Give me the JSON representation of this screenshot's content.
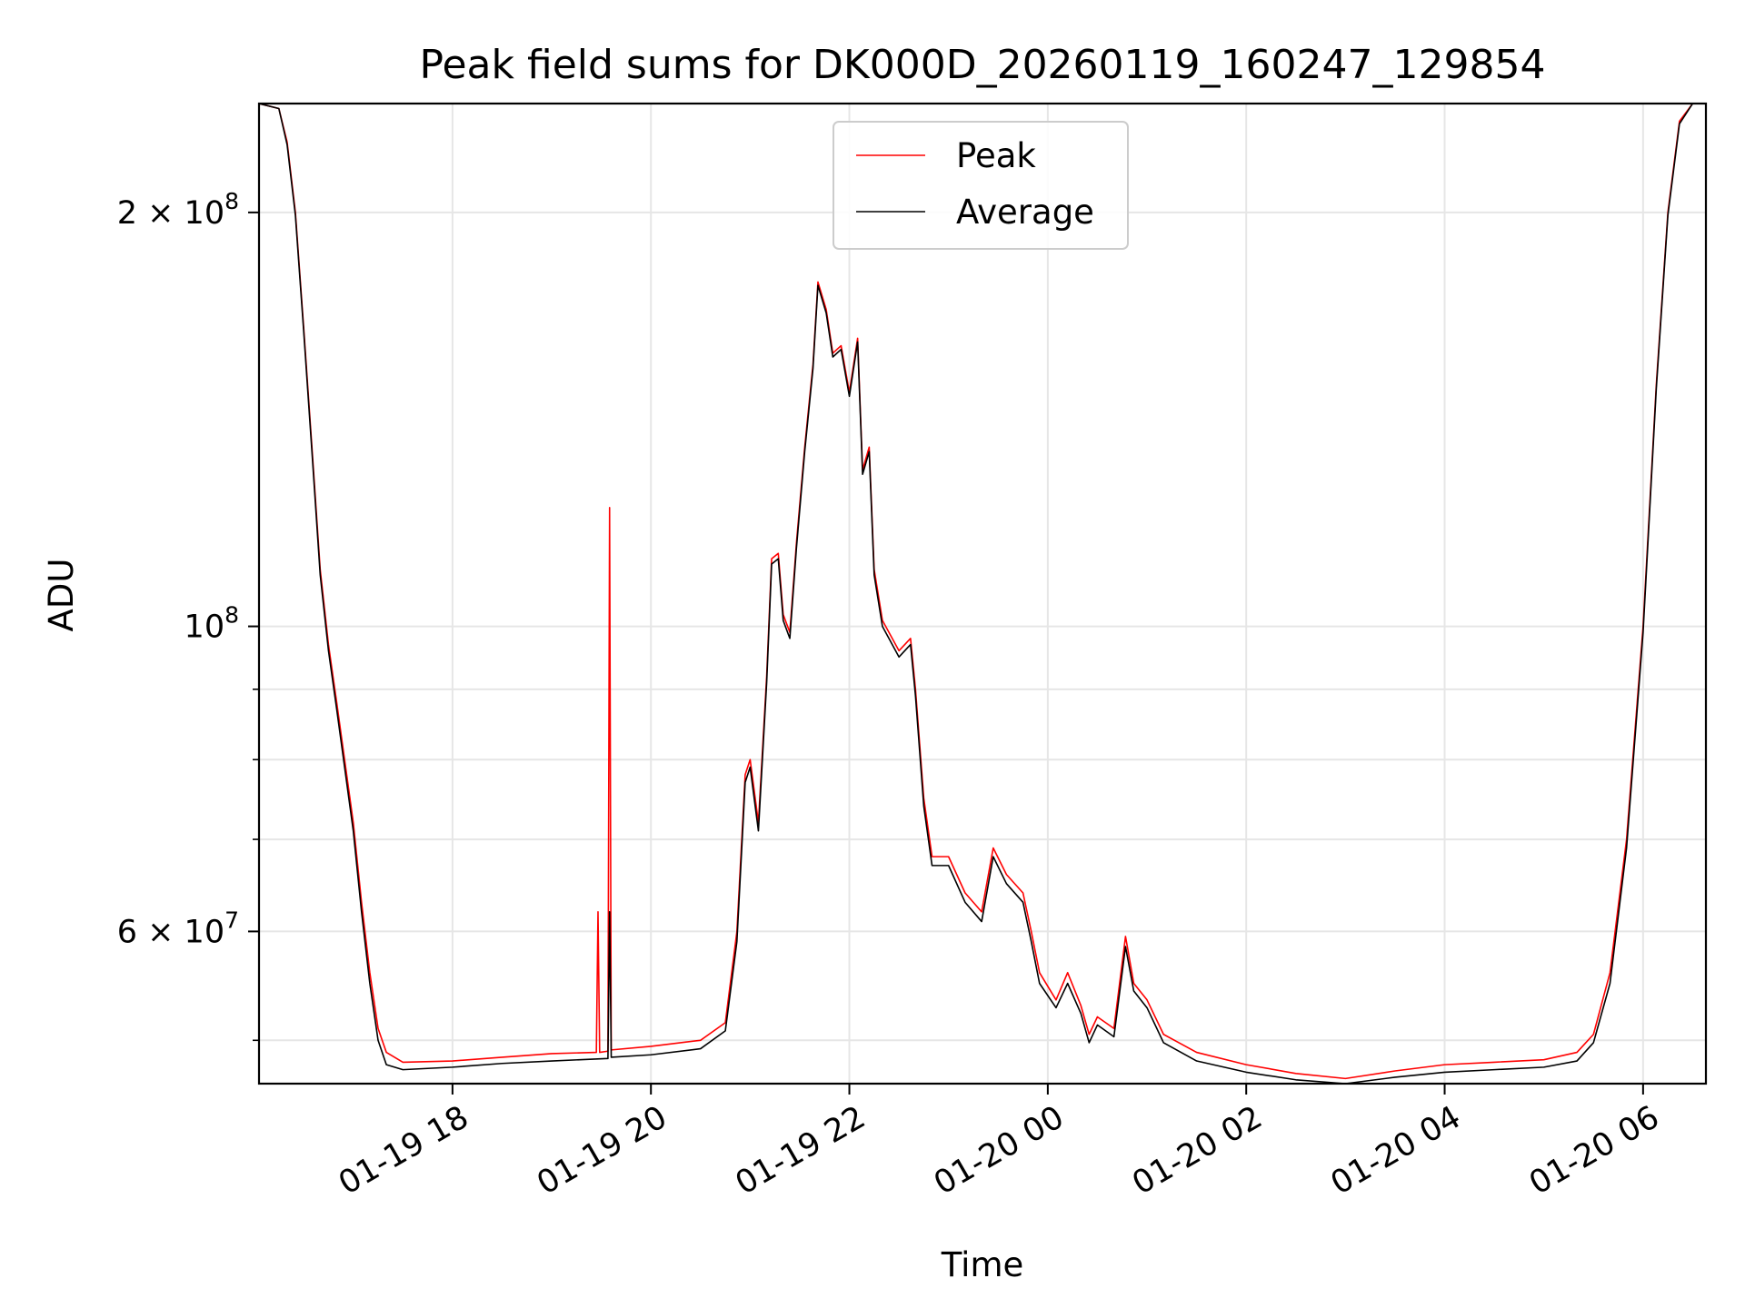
{
  "chart_data": {
    "type": "line",
    "title": "Peak field sums for DK000D_20260119_160247_129854",
    "xlabel": "Time",
    "ylabel": "ADU",
    "yscale": "log",
    "xlim": [
      "2026-01-19 16:03",
      "2026-01-20 06:38"
    ],
    "ylim": [
      46500000,
      240000000
    ],
    "grid": true,
    "legend_position": "top-center",
    "x_ticks": [
      {
        "value": "2026-01-19 18:00",
        "label": "01-19 18"
      },
      {
        "value": "2026-01-19 20:00",
        "label": "01-19 20"
      },
      {
        "value": "2026-01-19 22:00",
        "label": "01-19 22"
      },
      {
        "value": "2026-01-20 00:00",
        "label": "01-20 00"
      },
      {
        "value": "2026-01-20 02:00",
        "label": "01-20 02"
      },
      {
        "value": "2026-01-20 04:00",
        "label": "01-20 04"
      },
      {
        "value": "2026-01-20 06:00",
        "label": "01-20 06"
      }
    ],
    "y_ticks_major": [
      {
        "value": 200000000,
        "base": "2",
        "times": "×",
        "tenpow": "10",
        "exp": "8"
      },
      {
        "value": 100000000,
        "base": "",
        "times": "",
        "tenpow": "10",
        "exp": "8"
      },
      {
        "value": 60000000,
        "base": "6",
        "times": "×",
        "tenpow": "10",
        "exp": "7"
      }
    ],
    "y_gridlines_minor": [
      50000000,
      70000000,
      80000000,
      90000000
    ],
    "series": [
      {
        "name": "Peak",
        "color": "#ff0000",
        "points": [
          [
            "2026-01-19 16:03",
            240000000
          ],
          [
            "2026-01-19 16:15",
            238000000
          ],
          [
            "2026-01-19 16:20",
            225000000
          ],
          [
            "2026-01-19 16:25",
            200000000
          ],
          [
            "2026-01-19 16:30",
            165000000
          ],
          [
            "2026-01-19 16:35",
            135000000
          ],
          [
            "2026-01-19 16:40",
            110000000
          ],
          [
            "2026-01-19 16:45",
            97000000
          ],
          [
            "2026-01-19 16:50",
            88000000
          ],
          [
            "2026-01-19 17:00",
            72000000
          ],
          [
            "2026-01-19 17:05",
            63000000
          ],
          [
            "2026-01-19 17:10",
            56000000
          ],
          [
            "2026-01-19 17:15",
            51000000
          ],
          [
            "2026-01-19 17:20",
            49000000
          ],
          [
            "2026-01-19 17:30",
            48200000
          ],
          [
            "2026-01-19 18:00",
            48300000
          ],
          [
            "2026-01-19 18:30",
            48600000
          ],
          [
            "2026-01-19 19:00",
            48900000
          ],
          [
            "2026-01-19 19:27",
            49000000
          ],
          [
            "2026-01-19 19:28",
            62000000
          ],
          [
            "2026-01-19 19:29",
            49000000
          ],
          [
            "2026-01-19 19:34",
            49100000
          ],
          [
            "2026-01-19 19:35",
            122000000
          ],
          [
            "2026-01-19 19:36",
            49200000
          ],
          [
            "2026-01-19 20:00",
            49500000
          ],
          [
            "2026-01-19 20:30",
            50000000
          ],
          [
            "2026-01-19 20:45",
            51500000
          ],
          [
            "2026-01-19 20:52",
            60000000
          ],
          [
            "2026-01-19 20:57",
            78000000
          ],
          [
            "2026-01-19 21:00",
            80000000
          ],
          [
            "2026-01-19 21:05",
            72000000
          ],
          [
            "2026-01-19 21:10",
            92000000
          ],
          [
            "2026-01-19 21:13",
            112000000
          ],
          [
            "2026-01-19 21:17",
            113000000
          ],
          [
            "2026-01-19 21:20",
            102000000
          ],
          [
            "2026-01-19 21:24",
            99000000
          ],
          [
            "2026-01-19 21:28",
            115000000
          ],
          [
            "2026-01-19 21:33",
            135000000
          ],
          [
            "2026-01-19 21:38",
            155000000
          ],
          [
            "2026-01-19 21:41",
            178000000
          ],
          [
            "2026-01-19 21:46",
            170000000
          ],
          [
            "2026-01-19 21:50",
            158000000
          ],
          [
            "2026-01-19 21:55",
            160000000
          ],
          [
            "2026-01-19 22:00",
            148000000
          ],
          [
            "2026-01-19 22:05",
            162000000
          ],
          [
            "2026-01-19 22:08",
            130000000
          ],
          [
            "2026-01-19 22:12",
            135000000
          ],
          [
            "2026-01-19 22:15",
            110000000
          ],
          [
            "2026-01-19 22:20",
            101000000
          ],
          [
            "2026-01-19 22:30",
            96000000
          ],
          [
            "2026-01-19 22:37",
            98000000
          ],
          [
            "2026-01-19 22:40",
            90000000
          ],
          [
            "2026-01-19 22:45",
            75000000
          ],
          [
            "2026-01-19 22:50",
            68000000
          ],
          [
            "2026-01-19 23:00",
            68000000
          ],
          [
            "2026-01-19 23:10",
            64000000
          ],
          [
            "2026-01-19 23:20",
            62000000
          ],
          [
            "2026-01-19 23:27",
            69000000
          ],
          [
            "2026-01-19 23:35",
            66000000
          ],
          [
            "2026-01-19 23:45",
            64000000
          ],
          [
            "2026-01-19 23:50",
            60000000
          ],
          [
            "2026-01-19 23:55",
            56000000
          ],
          [
            "2026-01-20 00:05",
            53500000
          ],
          [
            "2026-01-20 00:12",
            56000000
          ],
          [
            "2026-01-20 00:20",
            53000000
          ],
          [
            "2026-01-20 00:25",
            50500000
          ],
          [
            "2026-01-20 00:30",
            52000000
          ],
          [
            "2026-01-20 00:40",
            51000000
          ],
          [
            "2026-01-20 00:47",
            59500000
          ],
          [
            "2026-01-20 00:52",
            55000000
          ],
          [
            "2026-01-20 01:00",
            53500000
          ],
          [
            "2026-01-20 01:10",
            50500000
          ],
          [
            "2026-01-20 01:30",
            49000000
          ],
          [
            "2026-01-20 02:00",
            48000000
          ],
          [
            "2026-01-20 02:30",
            47300000
          ],
          [
            "2026-01-20 03:00",
            46900000
          ],
          [
            "2026-01-20 03:30",
            47500000
          ],
          [
            "2026-01-20 04:00",
            48000000
          ],
          [
            "2026-01-20 04:30",
            48200000
          ],
          [
            "2026-01-20 05:00",
            48400000
          ],
          [
            "2026-01-20 05:20",
            49000000
          ],
          [
            "2026-01-20 05:30",
            50500000
          ],
          [
            "2026-01-20 05:40",
            56000000
          ],
          [
            "2026-01-20 05:50",
            70000000
          ],
          [
            "2026-01-20 06:00",
            100000000
          ],
          [
            "2026-01-20 06:08",
            150000000
          ],
          [
            "2026-01-20 06:15",
            200000000
          ],
          [
            "2026-01-20 06:22",
            233000000
          ],
          [
            "2026-01-20 06:30",
            240000000
          ],
          [
            "2026-01-20 06:38",
            240000000
          ]
        ]
      },
      {
        "name": "Average",
        "color": "#000000",
        "points": [
          [
            "2026-01-19 16:03",
            240000000
          ],
          [
            "2026-01-19 16:15",
            238000000
          ],
          [
            "2026-01-19 16:20",
            224000000
          ],
          [
            "2026-01-19 16:25",
            199000000
          ],
          [
            "2026-01-19 16:30",
            164000000
          ],
          [
            "2026-01-19 16:35",
            134000000
          ],
          [
            "2026-01-19 16:40",
            109000000
          ],
          [
            "2026-01-19 16:45",
            96000000
          ],
          [
            "2026-01-19 16:50",
            87000000
          ],
          [
            "2026-01-19 17:00",
            71000000
          ],
          [
            "2026-01-19 17:05",
            62000000
          ],
          [
            "2026-01-19 17:10",
            55000000
          ],
          [
            "2026-01-19 17:15",
            50000000
          ],
          [
            "2026-01-19 17:20",
            48000000
          ],
          [
            "2026-01-19 17:30",
            47600000
          ],
          [
            "2026-01-19 18:00",
            47800000
          ],
          [
            "2026-01-19 18:30",
            48100000
          ],
          [
            "2026-01-19 19:00",
            48300000
          ],
          [
            "2026-01-19 19:34",
            48500000
          ],
          [
            "2026-01-19 19:35",
            62000000
          ],
          [
            "2026-01-19 19:36",
            48600000
          ],
          [
            "2026-01-19 20:00",
            48800000
          ],
          [
            "2026-01-19 20:30",
            49300000
          ],
          [
            "2026-01-19 20:45",
            50800000
          ],
          [
            "2026-01-19 20:52",
            59000000
          ],
          [
            "2026-01-19 20:57",
            77000000
          ],
          [
            "2026-01-19 21:00",
            79000000
          ],
          [
            "2026-01-19 21:05",
            71000000
          ],
          [
            "2026-01-19 21:10",
            91000000
          ],
          [
            "2026-01-19 21:13",
            111000000
          ],
          [
            "2026-01-19 21:17",
            112000000
          ],
          [
            "2026-01-19 21:20",
            101000000
          ],
          [
            "2026-01-19 21:24",
            98000000
          ],
          [
            "2026-01-19 21:28",
            114000000
          ],
          [
            "2026-01-19 21:33",
            134000000
          ],
          [
            "2026-01-19 21:38",
            154000000
          ],
          [
            "2026-01-19 21:41",
            177000000
          ],
          [
            "2026-01-19 21:46",
            169000000
          ],
          [
            "2026-01-19 21:50",
            157000000
          ],
          [
            "2026-01-19 21:55",
            159000000
          ],
          [
            "2026-01-19 22:00",
            147000000
          ],
          [
            "2026-01-19 22:05",
            161000000
          ],
          [
            "2026-01-19 22:08",
            129000000
          ],
          [
            "2026-01-19 22:12",
            134000000
          ],
          [
            "2026-01-19 22:15",
            109000000
          ],
          [
            "2026-01-19 22:20",
            100000000
          ],
          [
            "2026-01-19 22:30",
            95000000
          ],
          [
            "2026-01-19 22:37",
            97000000
          ],
          [
            "2026-01-19 22:40",
            89000000
          ],
          [
            "2026-01-19 22:45",
            74000000
          ],
          [
            "2026-01-19 22:50",
            67000000
          ],
          [
            "2026-01-19 23:00",
            67000000
          ],
          [
            "2026-01-19 23:10",
            63000000
          ],
          [
            "2026-01-19 23:20",
            61000000
          ],
          [
            "2026-01-19 23:27",
            68000000
          ],
          [
            "2026-01-19 23:35",
            65000000
          ],
          [
            "2026-01-19 23:45",
            63000000
          ],
          [
            "2026-01-19 23:50",
            59000000
          ],
          [
            "2026-01-19 23:55",
            55000000
          ],
          [
            "2026-01-20 00:05",
            52800000
          ],
          [
            "2026-01-20 00:12",
            55000000
          ],
          [
            "2026-01-20 00:20",
            52300000
          ],
          [
            "2026-01-20 00:25",
            49800000
          ],
          [
            "2026-01-20 00:30",
            51300000
          ],
          [
            "2026-01-20 00:40",
            50300000
          ],
          [
            "2026-01-20 00:47",
            58500000
          ],
          [
            "2026-01-20 00:52",
            54300000
          ],
          [
            "2026-01-20 01:00",
            52800000
          ],
          [
            "2026-01-20 01:10",
            49800000
          ],
          [
            "2026-01-20 01:30",
            48300000
          ],
          [
            "2026-01-20 02:00",
            47400000
          ],
          [
            "2026-01-20 02:30",
            46800000
          ],
          [
            "2026-01-20 03:00",
            46500000
          ],
          [
            "2026-01-20 03:30",
            47000000
          ],
          [
            "2026-01-20 04:00",
            47400000
          ],
          [
            "2026-01-20 04:30",
            47600000
          ],
          [
            "2026-01-20 05:00",
            47800000
          ],
          [
            "2026-01-20 05:20",
            48300000
          ],
          [
            "2026-01-20 05:30",
            49800000
          ],
          [
            "2026-01-20 05:40",
            55000000
          ],
          [
            "2026-01-20 05:50",
            69000000
          ],
          [
            "2026-01-20 06:00",
            99000000
          ],
          [
            "2026-01-20 06:08",
            149000000
          ],
          [
            "2026-01-20 06:15",
            199000000
          ],
          [
            "2026-01-20 06:22",
            232000000
          ],
          [
            "2026-01-20 06:30",
            240000000
          ],
          [
            "2026-01-20 06:38",
            240000000
          ]
        ]
      }
    ]
  }
}
